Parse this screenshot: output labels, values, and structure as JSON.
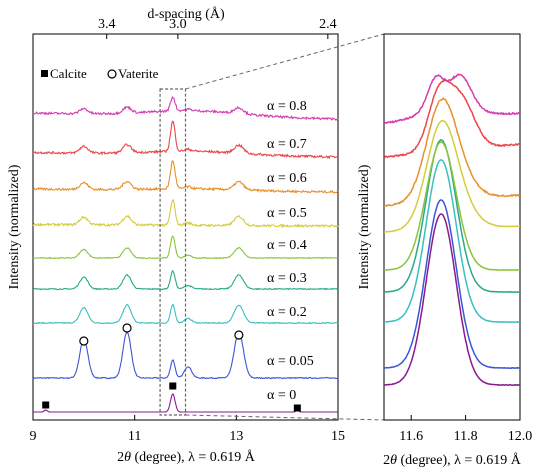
{
  "chart_data": [
    {
      "type": "line",
      "title": "",
      "top_axis": {
        "label": "d-spacing (Å)",
        "ticks": [
          {
            "label": "3.4",
            "two_theta": 10.45
          },
          {
            "label": "3.0",
            "two_theta": 11.85
          },
          {
            "label": "2.4",
            "two_theta": 14.8
          }
        ]
      },
      "xlabel": "2θ (degree), λ = 0.619 Å",
      "xlabel_parts": {
        "symbol": "2",
        "theta": "θ",
        "rest": " (degree), λ = 0.619 Å"
      },
      "ylabel": "Intensity (normalized)",
      "xlim": [
        9,
        15
      ],
      "xticks": [
        9,
        11,
        13,
        15
      ],
      "xtick_labels": [
        "9",
        "11",
        "13",
        "15"
      ],
      "legend": {
        "calcite": {
          "label": "Calcite",
          "marker": "filled-square"
        },
        "vaterite": {
          "label": "Vaterite",
          "marker": "open-circle"
        }
      },
      "zoom_window": [
        11.5,
        12.0
      ],
      "series": [
        {
          "name": "α = 0",
          "color": "#8a1a8f",
          "peaks": {
            "calcite": [
              9.25,
              11.75,
              14.2
            ],
            "vaterite": []
          }
        },
        {
          "name": "α = 0.05",
          "color": "#3c55d6",
          "peaks": {
            "calcite": [
              11.75
            ],
            "vaterite": [
              10.0,
              10.85,
              13.05
            ]
          }
        },
        {
          "name": "α = 0.2",
          "color": "#3bbfbf",
          "peaks": {
            "calcite": [
              11.75
            ],
            "vaterite": [
              10.0,
              10.85,
              13.05
            ]
          }
        },
        {
          "name": "α = 0.3",
          "color": "#2aa88a",
          "peaks": {
            "calcite": [
              11.75
            ],
            "vaterite": [
              10.85,
              13.05
            ]
          }
        },
        {
          "name": "α = 0.4",
          "color": "#8cc43c",
          "peaks": {
            "calcite": [
              11.75
            ],
            "vaterite": [
              10.85,
              13.05
            ]
          }
        },
        {
          "name": "α = 0.5",
          "color": "#d4cc3c",
          "peaks": {
            "calcite": [
              11.75
            ],
            "vaterite": [
              10.85,
              13.05
            ]
          }
        },
        {
          "name": "α = 0.6",
          "color": "#e8902a",
          "peaks": {
            "calcite": [
              11.75
            ],
            "vaterite": [
              10.85,
              13.05
            ]
          }
        },
        {
          "name": "α = 0.7",
          "color": "#e8464a",
          "peaks": {
            "calcite": [
              11.75
            ],
            "vaterite": [
              13.05
            ]
          }
        },
        {
          "name": "α = 0.8",
          "color": "#d43cb0",
          "peaks": {
            "calcite": [
              11.75
            ],
            "vaterite": [
              13.05
            ]
          }
        }
      ]
    },
    {
      "type": "line",
      "title": "",
      "xlabel": "2θ (degree), λ = 0.619 Å",
      "xlabel_parts": {
        "symbol": "2",
        "theta": "θ",
        "rest": " (degree), λ = 0.619 Å"
      },
      "ylabel": "Intensity (normalized)",
      "xlim": [
        11.5,
        12.0
      ],
      "xticks": [
        11.6,
        11.8,
        12.0
      ],
      "xtick_labels": [
        "11.6",
        "11.8",
        "12.0"
      ],
      "peak_center": 11.71,
      "note": ""
    }
  ]
}
